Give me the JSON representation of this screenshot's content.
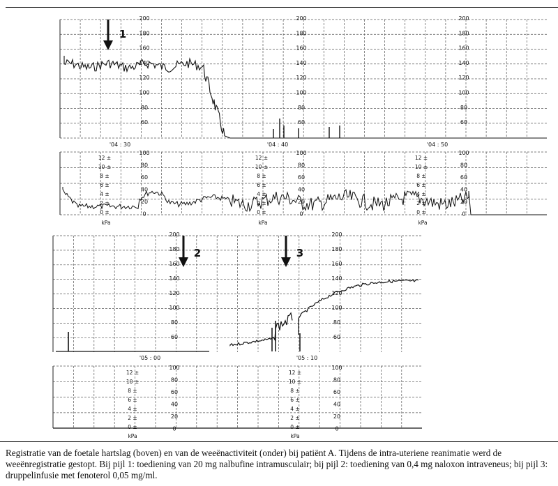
{
  "figure": {
    "arrows": [
      {
        "label": "1"
      },
      {
        "label": "2"
      },
      {
        "label": "3"
      }
    ],
    "panel1": {
      "fhr_scale": [
        "200",
        "180",
        "160",
        "140",
        "120",
        "100",
        "80",
        "60"
      ],
      "time_labels": [
        "'04 : 30",
        "'04 : 40",
        "'04 : 50"
      ],
      "kpa_scale": [
        "12",
        "10",
        "8",
        "6",
        "4",
        "2",
        "0"
      ],
      "pct_scale": [
        "100",
        "80",
        "60",
        "40",
        "20",
        "0"
      ],
      "kpa_label": "kPa"
    },
    "panel2": {
      "fhr_scale": [
        "200",
        "180",
        "160",
        "140",
        "120",
        "100",
        "80",
        "60"
      ],
      "time_labels": [
        "'05 : 00",
        "'05 : 10"
      ],
      "kpa_scale": [
        "12",
        "10",
        "8",
        "6",
        "4",
        "2",
        "0"
      ],
      "pct_scale": [
        "100",
        "80",
        "60",
        "40",
        "20",
        "0"
      ],
      "kpa_label": "kPa"
    }
  },
  "caption": "Registratie van de foetale hartslag (boven) en van de weeënactiviteit (onder) bij patiënt A. Tijdens de intra-uteriene reanimatie werd de weeënregistratie gestopt. Bij pijl 1: toediening van 20 mg nalbufine intramusculair; bij pijl 2: toediening van 0,4 mg naloxon intraveneus; bij pijl 3: druppelinfusie met fenoterol 0,05 mg/ml."
}
